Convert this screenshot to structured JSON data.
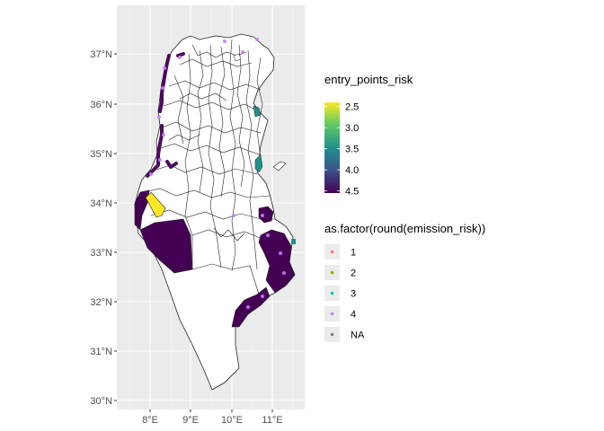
{
  "map": {
    "x_ticks": [
      "8°E",
      "9°E",
      "10°E",
      "11°E"
    ],
    "y_ticks": [
      "37°N",
      "36°N",
      "35°N",
      "34°N",
      "33°N",
      "32°N",
      "31°N",
      "30°N"
    ],
    "panel_color": "#ebebeb",
    "grid_color": "#ffffff"
  },
  "legend_fill": {
    "title": "entry_points_risk",
    "labels": [
      "2.5",
      "3.0",
      "3.5",
      "4.0",
      "4.5"
    ],
    "values": [
      2.5,
      3.0,
      3.5,
      4.0,
      4.5
    ],
    "range": [
      2.4,
      4.55
    ],
    "colors": [
      "#fde725",
      "#5ec962",
      "#21918c",
      "#3b528b",
      "#440154"
    ]
  },
  "legend_points": {
    "title": "as.factor(round(emission_risk))",
    "items": [
      {
        "label": "1",
        "color": "#f8766d"
      },
      {
        "label": "2",
        "color": "#a3a500"
      },
      {
        "label": "3",
        "color": "#00bfc4"
      },
      {
        "label": "4",
        "color": "#c77cff"
      },
      {
        "label": "NA",
        "color": "#7f7f7f"
      }
    ]
  }
}
